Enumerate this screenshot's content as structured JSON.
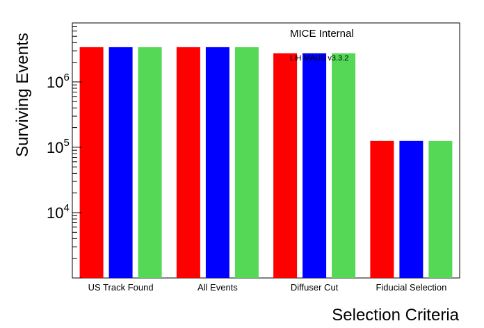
{
  "chart_data": {
    "type": "bar",
    "title": "MICE Internal",
    "subtitle": "LiH MAUS v3.3.2",
    "xlabel": "Selection Criteria",
    "ylabel": "Surviving Events",
    "yscale": "log",
    "ylim": [
      1000,
      8000000
    ],
    "grid": false,
    "categories": [
      "US Track Found",
      "All Events",
      "Diffuser Cut",
      "Fiducial Selection"
    ],
    "series": [
      {
        "color": "#ff0000",
        "values": [
          3400000,
          3400000,
          2750000,
          125000
        ]
      },
      {
        "color": "#0000ff",
        "values": [
          3400000,
          3400000,
          2750000,
          125000
        ]
      },
      {
        "color": "#55d855",
        "values": [
          3400000,
          3400000,
          2750000,
          125000
        ]
      }
    ],
    "yticks": [
      {
        "mantissa": "10",
        "exponent": "4",
        "value": 10000
      },
      {
        "mantissa": "10",
        "exponent": "5",
        "value": 100000
      },
      {
        "mantissa": "10",
        "exponent": "6",
        "value": 1000000
      }
    ]
  }
}
